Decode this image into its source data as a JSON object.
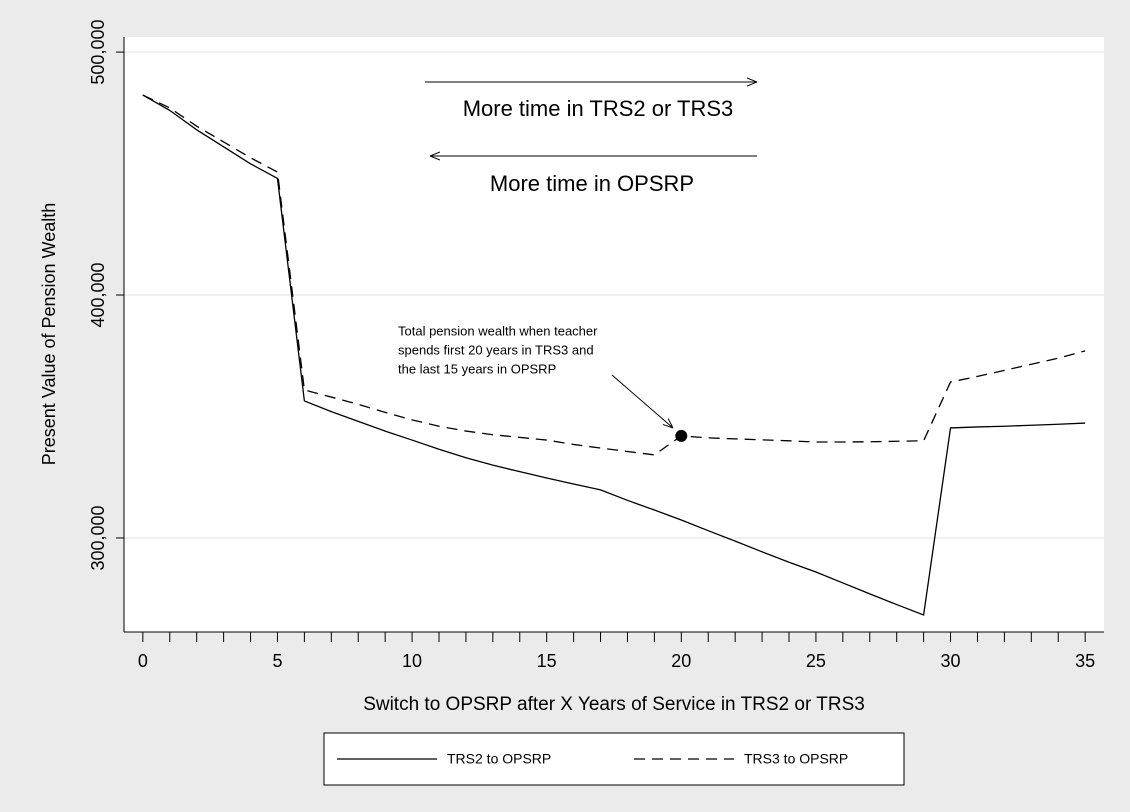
{
  "chart_data": {
    "type": "line",
    "y_label": "Present Value of Pension Wealth",
    "x_label": "Switch to OPSRP after X Years of Service in TRS2 or TRS3",
    "x": [
      0,
      1,
      2,
      3,
      4,
      5,
      6,
      7,
      8,
      9,
      10,
      11,
      12,
      13,
      14,
      15,
      16,
      17,
      18,
      19,
      20,
      21,
      22,
      23,
      24,
      25,
      26,
      27,
      28,
      29,
      30,
      31,
      32,
      33,
      34,
      35
    ],
    "series": [
      {
        "name": "TRS2 to OPSRP",
        "color": "#000000",
        "dash": "solid",
        "values": [
          482300,
          476000,
          468000,
          461000,
          454000,
          448000,
          356400,
          352000,
          348000,
          344000,
          340300,
          336500,
          333000,
          330000,
          327300,
          324700,
          322200,
          319800,
          315500,
          311500,
          307400,
          303000,
          298700,
          294300,
          290000,
          286000,
          281500,
          277000,
          272600,
          268300,
          345300,
          345700,
          346000,
          346400,
          346800,
          347300
        ]
      },
      {
        "name": "TRS3 to OPSRP",
        "color": "#000000",
        "dash": "dashed",
        "values": [
          482300,
          477000,
          469500,
          463000,
          456500,
          450600,
          360900,
          358000,
          355000,
          351700,
          348600,
          346000,
          344000,
          342500,
          341400,
          340300,
          338500,
          337000,
          335600,
          334200,
          342000,
          341200,
          340800,
          340400,
          340000,
          339500,
          339500,
          339600,
          339800,
          340000,
          364200,
          366500,
          369000,
          371500,
          374000,
          377000
        ]
      }
    ],
    "xlim": [
      -0.7,
      35.7
    ],
    "ylim": [
      261300,
      506200
    ],
    "xticks": [
      0,
      5,
      10,
      15,
      20,
      25,
      30,
      35
    ],
    "xminorticks": [
      1,
      2,
      3,
      4,
      6,
      7,
      8,
      9,
      11,
      12,
      13,
      14,
      16,
      17,
      18,
      19,
      21,
      22,
      23,
      24,
      26,
      27,
      28,
      29,
      31,
      32,
      33,
      34
    ],
    "yticks": [
      {
        "value": 300000,
        "label": "300,000"
      },
      {
        "value": 400000,
        "label": "400,000"
      },
      {
        "value": 500000,
        "label": "500,000"
      }
    ],
    "grid": true,
    "legend": "bottom",
    "arrow_texts": [
      "More time in TRS2 or TRS3",
      "More time in OPSRP"
    ],
    "annotation": {
      "lines": [
        "Total pension wealth when teacher",
        "spends first 20 years in TRS3 and",
        "the last 15 years in OPSRP"
      ],
      "point": [
        20,
        342000
      ]
    }
  }
}
